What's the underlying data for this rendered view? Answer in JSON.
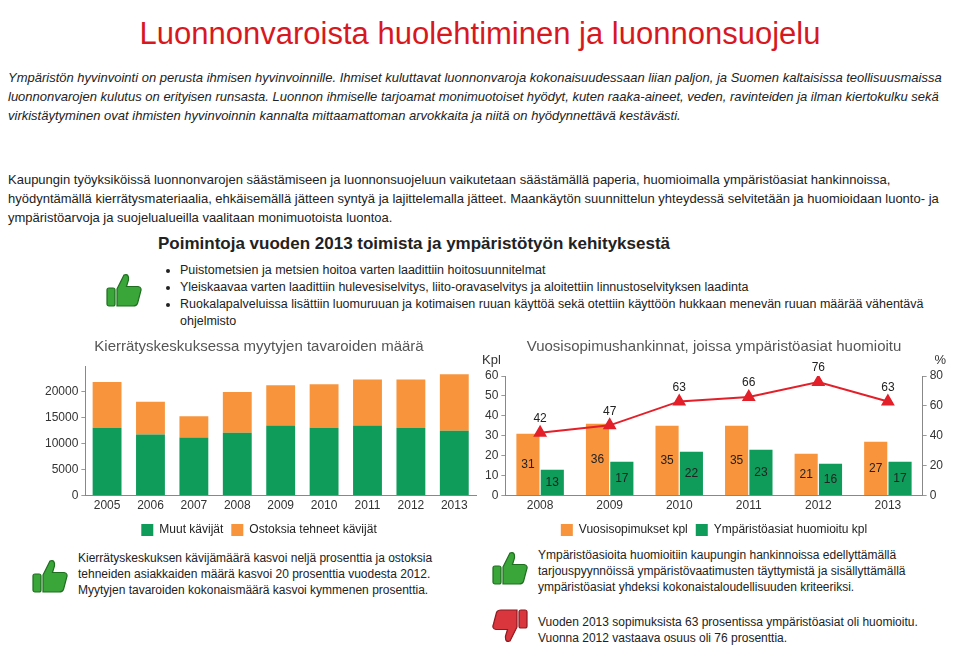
{
  "header": {
    "title": "Luonnonvaroista huolehtiminen ja luonnonsuojelu"
  },
  "intro": [
    "Ympäristön hyvinvointi on perusta ihmisen hyvinvoinnille. Ihmiset kuluttavat luonnonvaroja kokonaisuudessaan liian paljon, ja Suomen kaltaisissa teollisuusmaissa luonnonvarojen kulutus on erityisen runsasta. Luonnon ihmiselle tarjoamat monimuotoiset hyödyt, kuten raaka-aineet, veden, ravinteiden ja ilman kiertokulku sekä virkistäytyminen ovat ihmisten hyvinvoinnin kannalta mittaamattoman arvokkaita ja niitä on hyödynnettävä kestävästi.",
    "Kaupungin työyksiköissä luonnonvarojen säästämiseen ja luonnonsuojeluun vaikutetaan säästämällä paperia, huomioimalla ympäristöasiat hankinnoissa, hyödyntämällä kierrätysmateriaalia, ehkäisemällä jätteen syntyä ja lajittelemalla jätteet. Maankäytön suunnittelun yhteydessä selvitetään ja huomioidaan luonto- ja ympäristöarvoja ja suojelualueilla vaalitaan monimuotoista luontoa."
  ],
  "highlights": {
    "title": "Poimintoja vuoden 2013 toimista ja ympäristötyön kehityksestä",
    "items": [
      "Puistometsien ja metsien hoitoa varten laadittiin hoitosuunnitelmat",
      "Yleiskaavaa varten laadittiin hulevesiselvitys, liito-oravaselvitys ja aloitettiin linnustoselvityksen laadinta",
      "Ruokalapalveluissa lisättiin luomuruuan ja kotimaisen ruuan käyttöä sekä otettiin käyttöön hukkaan menevän ruuan määrää vähentävä ohjelmisto"
    ]
  },
  "chart_data": [
    {
      "type": "bar",
      "title": "Kierrätyskeskuksessa myytyjen tavaroiden määrä",
      "categories": [
        "2005",
        "2006",
        "2007",
        "2008",
        "2009",
        "2010",
        "2011",
        "2012",
        "2013"
      ],
      "series": [
        {
          "name": "Muut kävijät",
          "color": "#0f9b5a",
          "values": [
            13100,
            11800,
            11200,
            12100,
            13500,
            13100,
            13500,
            13100,
            12500
          ]
        },
        {
          "name": "Ostoksia tehneet kävijät",
          "color": "#f7943c",
          "values": [
            8800,
            6300,
            4100,
            7900,
            7800,
            8400,
            8900,
            9300,
            10900
          ]
        }
      ],
      "stacked": true,
      "ylim": [
        0,
        25000
      ],
      "yticks": [
        0,
        5000,
        10000,
        15000,
        20000
      ],
      "grid": false,
      "legend": "bottom"
    },
    {
      "type": "bar",
      "title": "Vuosisopimushankinnat, joissa ympäristöasiat huomioitu",
      "y_label": "Kpl",
      "y2_label": "%",
      "categories": [
        "2008",
        "2009",
        "2010",
        "2011",
        "2012",
        "2013"
      ],
      "series": [
        {
          "name": "Vuosisopimukset kpl",
          "color": "#f7943c",
          "values": [
            31,
            36,
            35,
            35,
            21,
            27
          ]
        },
        {
          "name": "Ympäristöasiat huomioitu kpl",
          "color": "#0f9b5a",
          "values": [
            13,
            17,
            22,
            23,
            16,
            17
          ]
        },
        {
          "type": "line",
          "axis": "y2",
          "color": "#e3202a",
          "marker": "triangle",
          "values": [
            42,
            47,
            63,
            66,
            76,
            63
          ]
        }
      ],
      "ylim": [
        0,
        60
      ],
      "yticks": [
        0,
        10,
        20,
        30,
        40,
        50,
        60
      ],
      "y2lim": [
        0,
        80
      ],
      "y2ticks": [
        0,
        20,
        40,
        60,
        80
      ],
      "grid": false,
      "legend": "bottom",
      "data_labels": true
    }
  ],
  "notes": [
    "Kierrätyskeskuksen kävijämäärä kasvoi neljä prosenttia ja ostoksia tehneiden asiakkaiden määrä kasvoi 20 prosenttia vuodesta 2012. Myytyjen tavaroiden kokonaismäärä kasvoi kymmenen prosenttia.",
    "Ympäristöasioita huomioitiin kaupungin hankinnoissa edellyttämällä tarjouspyynnöissä ympäristövaatimusten täyttymistä ja sisällyttämällä ympäristöasiat yhdeksi kokonaistaloudellisuuden kriteeriksi.",
    "Vuoden 2013 sopimuksista 63 prosentissa ympäristöasiat oli huomioitu. Vuonna 2012 vastaava osuus oli 76 prosenttia."
  ]
}
